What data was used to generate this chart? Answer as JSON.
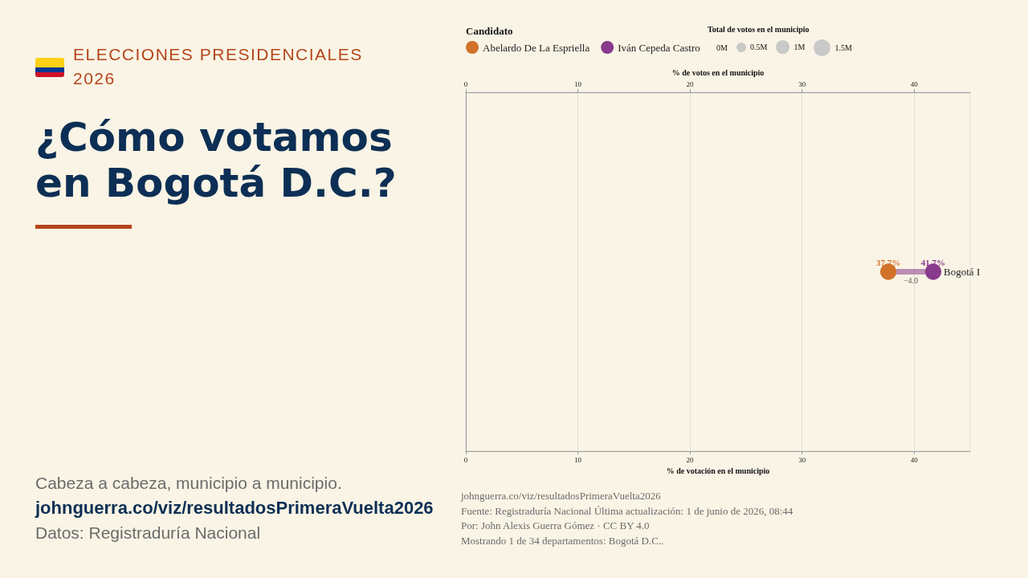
{
  "chart_data": {
    "type": "bubble",
    "orientation": "horizontal",
    "subtitle": "ELECCIONES PRESIDENCIALES 2026",
    "title": "¿Cómo votamos en Bogotá D.C.?",
    "xlabel": "% de votación en el municipio",
    "x2label": "% de votos en el municipio",
    "legend_title": "Candidato",
    "categories": [
      "Bogotá I"
    ],
    "series": [
      {
        "name": "Abelardo De La Espriella",
        "color": "#d2722a",
        "values": [
          37.7
        ],
        "sizes": [
          1.4
        ],
        "value_labels": [
          "37.7%"
        ]
      },
      {
        "name": "Iván Cepeda Castro",
        "color": "#8a3a8c",
        "values": [
          41.7
        ],
        "sizes": [
          1.4
        ],
        "value_labels": [
          "41.7%"
        ]
      }
    ],
    "size_legend": [
      {
        "value": 0.5,
        "label": "0.5M"
      },
      {
        "value": 1,
        "label": "1M"
      },
      {
        "value": 1.5,
        "label": "1.5M"
      }
    ],
    "xlim": [
      0,
      45
    ],
    "xticks": [
      0,
      10,
      20,
      30,
      40
    ],
    "x2lim": [
      0,
      45
    ],
    "x2ticks": [
      0,
      10,
      20,
      30,
      40
    ],
    "grid": "x",
    "legend": "top left",
    "marker": "circle",
    "annotations": [
      "−4.0",
      "Total de votos en el municipio",
      "0M",
      "Cabeza a cabeza, municipio a municipio.",
      "johnguerra.co/viz/resultadosPrimeraVuelta2026",
      "Datos: Registraduría Nacional",
      "johnguerra.co/viz/resultadosPrimeraVuelta2026",
      "Fuente: Registraduría Nacional Última actualización: 1 de junio de 2026, 08:44",
      "Por: John Alexis Guerra Gómez · CC BY 4.0",
      "Mostrando 1 de 34 departamentos: Bogotá D.C.."
    ]
  }
}
